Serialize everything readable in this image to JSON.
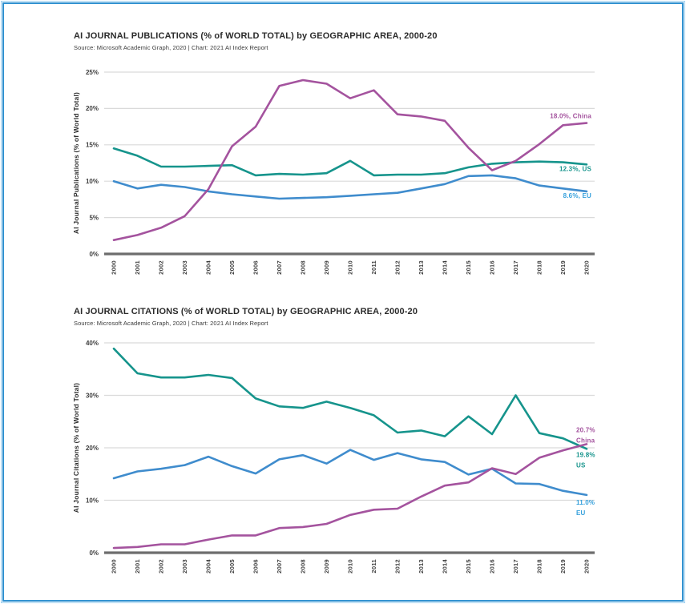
{
  "page": {
    "frame_border_color": "#2f90d0",
    "background": "#ffffff"
  },
  "chart_data": [
    {
      "type": "line",
      "title": "AI JOURNAL PUBLICATIONS (% of WORLD TOTAL) by GEOGRAPHIC AREA, 2000-20",
      "source": "Source: Microsoft Academic Graph, 2020 | Chart: 2021 AI Index Report",
      "ylabel": "AI Journal Publications (% of World Total)",
      "xlabel": "",
      "grid": true,
      "legend_position": "end-of-line-labels",
      "x": [
        "2000",
        "2001",
        "2002",
        "2003",
        "2004",
        "2005",
        "2006",
        "2007",
        "2008",
        "2009",
        "2010",
        "2011",
        "2012",
        "2013",
        "2014",
        "2015",
        "2016",
        "2017",
        "2018",
        "2019",
        "2020"
      ],
      "ylim": [
        0,
        25
      ],
      "yticks": [
        0,
        5,
        10,
        15,
        20,
        25
      ],
      "ytick_labels": [
        "0%",
        "5%",
        "10%",
        "15%",
        "20%",
        "25%"
      ],
      "series": [
        {
          "name": "US",
          "color": "#16948c",
          "label_color": "#16948c",
          "end_label": [
            "12.3%, US"
          ],
          "values": [
            14.5,
            13.5,
            12.0,
            12.0,
            12.1,
            12.2,
            10.8,
            11.0,
            10.9,
            11.1,
            12.8,
            10.8,
            10.9,
            10.9,
            11.1,
            11.9,
            12.4,
            12.6,
            12.7,
            12.6,
            12.3
          ]
        },
        {
          "name": "EU",
          "color": "#3f8ccd",
          "label_color": "#35a0dc",
          "end_label": [
            "8.6%, EU"
          ],
          "values": [
            10.0,
            9.0,
            9.5,
            9.2,
            8.6,
            8.2,
            7.9,
            7.6,
            7.7,
            7.8,
            8.0,
            8.2,
            8.4,
            9.0,
            9.6,
            10.7,
            10.8,
            10.4,
            9.4,
            9.0,
            8.6
          ]
        },
        {
          "name": "China",
          "color": "#a4539e",
          "label_color": "#a4539e",
          "end_label": [
            "18.0%, China"
          ],
          "values": [
            1.9,
            2.6,
            3.6,
            5.2,
            8.9,
            14.8,
            17.5,
            23.1,
            23.9,
            23.4,
            21.4,
            22.5,
            19.2,
            18.9,
            18.3,
            14.6,
            11.5,
            12.8,
            15.1,
            17.7,
            18.0
          ]
        }
      ]
    },
    {
      "type": "line",
      "title": "AI JOURNAL CITATIONS (% of WORLD TOTAL) by GEOGRAPHIC AREA, 2000-20",
      "source": "Source: Microsoft Academic Graph, 2020 | Chart: 2021 AI Index Report",
      "ylabel": "AI Journal Citations (% of World Total)",
      "xlabel": "",
      "grid": true,
      "legend_position": "end-of-line-labels",
      "x": [
        "2000",
        "2001",
        "2002",
        "2003",
        "2004",
        "2005",
        "2006",
        "2007",
        "2008",
        "2009",
        "2010",
        "2011",
        "2012",
        "2013",
        "2014",
        "2015",
        "2016",
        "2017",
        "2018",
        "2019",
        "2020"
      ],
      "ylim": [
        0,
        40
      ],
      "yticks": [
        0,
        10,
        20,
        30,
        40
      ],
      "ytick_labels": [
        "0%",
        "10%",
        "20%",
        "30%",
        "40%"
      ],
      "series": [
        {
          "name": "US",
          "color": "#16948c",
          "label_color": "#16948c",
          "end_label": [
            "19.8%",
            "US"
          ],
          "values": [
            38.9,
            34.2,
            33.4,
            33.4,
            33.9,
            33.3,
            29.4,
            27.9,
            27.6,
            28.8,
            27.6,
            26.2,
            22.9,
            23.3,
            22.2,
            26.0,
            22.6,
            30.0,
            22.8,
            21.8,
            19.8
          ]
        },
        {
          "name": "EU",
          "color": "#3f8ccd",
          "label_color": "#35a0dc",
          "end_label": [
            "11.0%",
            "EU"
          ],
          "values": [
            14.2,
            15.5,
            16.0,
            16.7,
            18.3,
            16.5,
            15.1,
            17.8,
            18.6,
            17.0,
            19.6,
            17.7,
            19.0,
            17.8,
            17.3,
            14.9,
            16.0,
            13.2,
            13.1,
            11.8,
            11.0
          ]
        },
        {
          "name": "China",
          "color": "#a4539e",
          "label_color": "#a4539e",
          "end_label": [
            "20.7%",
            "China"
          ],
          "values": [
            0.9,
            1.1,
            1.6,
            1.6,
            2.5,
            3.3,
            3.3,
            4.7,
            4.9,
            5.5,
            7.2,
            8.2,
            8.4,
            10.7,
            12.8,
            13.4,
            16.1,
            15.0,
            18.1,
            19.5,
            20.7
          ]
        }
      ]
    }
  ]
}
